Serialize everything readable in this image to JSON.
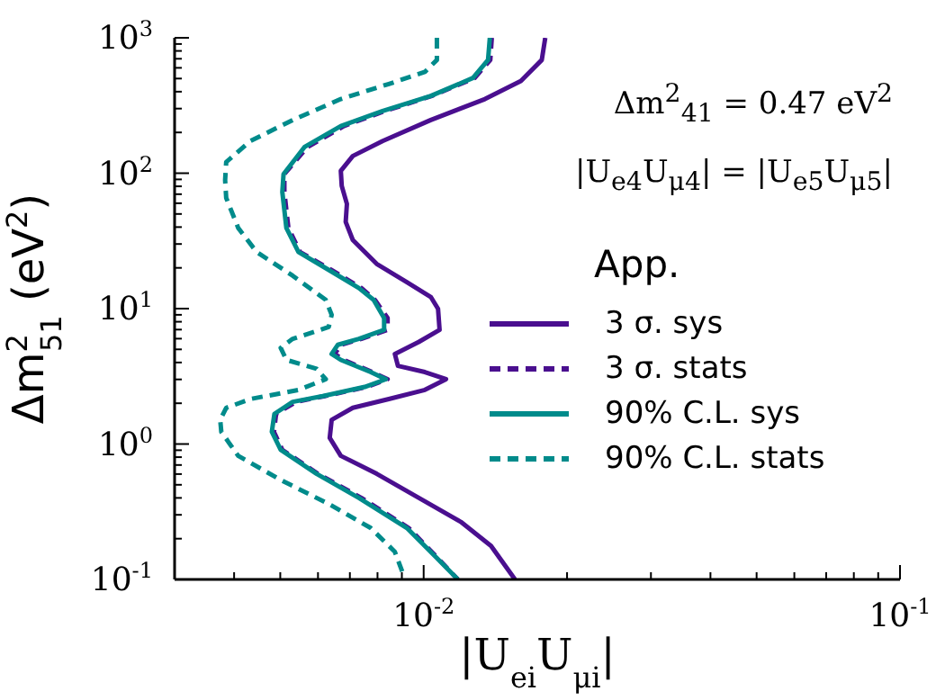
{
  "chart_data": {
    "type": "line",
    "xlabel": "|U$_{ei}$U$_{μi}$|",
    "ylabel": "Δm$^{2}$$_{51}$ (eV$^{2}$)",
    "legend_title": "App.",
    "annotations": [
      "Δm$^{2}$$_{41}$ = 0.47 eV$^{2}$",
      "|U$_{e4}$U$_{μ4}$| = |U$_{e5}$U$_{μ5}$|"
    ],
    "log": "xy",
    "legend": "right",
    "marker": "none",
    "xlim": [
      0.003,
      0.1
    ],
    "ylim": [
      0.1,
      1000
    ],
    "xticks": [
      {
        "value": 0.004,
        "label": null
      },
      {
        "value": 0.005,
        "label": null
      },
      {
        "value": 0.006,
        "label": null
      },
      {
        "value": 0.007,
        "label": null
      },
      {
        "value": 0.008,
        "label": null
      },
      {
        "value": 0.009,
        "label": null
      },
      {
        "value": 0.01,
        "label": "10$^{-2}$"
      },
      {
        "value": 0.02,
        "label": null
      },
      {
        "value": 0.03,
        "label": null
      },
      {
        "value": 0.04,
        "label": null
      },
      {
        "value": 0.05,
        "label": null
      },
      {
        "value": 0.06,
        "label": null
      },
      {
        "value": 0.07,
        "label": null
      },
      {
        "value": 0.08,
        "label": null
      },
      {
        "value": 0.09,
        "label": null
      },
      {
        "value": 0.1,
        "label": "10$^{-1}$"
      }
    ],
    "yticks": [
      {
        "value": 0.1,
        "label": "10$^{-1}$"
      },
      {
        "value": 0.2,
        "label": null
      },
      {
        "value": 0.3,
        "label": null
      },
      {
        "value": 0.4,
        "label": null
      },
      {
        "value": 0.5,
        "label": null
      },
      {
        "value": 0.6,
        "label": null
      },
      {
        "value": 0.7,
        "label": null
      },
      {
        "value": 0.8,
        "label": null
      },
      {
        "value": 0.9,
        "label": null
      },
      {
        "value": 1,
        "label": "10$^{0}$"
      },
      {
        "value": 2,
        "label": null
      },
      {
        "value": 3,
        "label": null
      },
      {
        "value": 4,
        "label": null
      },
      {
        "value": 5,
        "label": null
      },
      {
        "value": 6,
        "label": null
      },
      {
        "value": 7,
        "label": null
      },
      {
        "value": 8,
        "label": null
      },
      {
        "value": 9,
        "label": null
      },
      {
        "value": 10,
        "label": "10$^{1}$"
      },
      {
        "value": 20,
        "label": null
      },
      {
        "value": 30,
        "label": null
      },
      {
        "value": 40,
        "label": null
      },
      {
        "value": 50,
        "label": null
      },
      {
        "value": 60,
        "label": null
      },
      {
        "value": 70,
        "label": null
      },
      {
        "value": 80,
        "label": null
      },
      {
        "value": 90,
        "label": null
      },
      {
        "value": 100,
        "label": "10$^{2}$"
      },
      {
        "value": 200,
        "label": null
      },
      {
        "value": 300,
        "label": null
      },
      {
        "value": 400,
        "label": null
      },
      {
        "value": 500,
        "label": null
      },
      {
        "value": 600,
        "label": null
      },
      {
        "value": 700,
        "label": null
      },
      {
        "value": 800,
        "label": null
      },
      {
        "value": 900,
        "label": null
      },
      {
        "value": 1000,
        "label": "10$^{3}$"
      }
    ],
    "series": [
      {
        "name": "3 σ. sys",
        "color": "#4a0f8f",
        "line_style": "solid",
        "x": [
          0.018,
          0.0177,
          0.016,
          0.01345,
          0.01035,
          0.0082,
          0.0071,
          0.0067,
          0.00673,
          0.0069,
          0.00686,
          0.0071,
          0.00797,
          0.00922,
          0.01035,
          0.01072,
          0.0108,
          0.00977,
          0.0087,
          0.00883,
          0.01006,
          0.01114,
          0.01006,
          0.00845,
          0.0071,
          0.00641,
          0.00635,
          0.0067,
          0.00797,
          0.00977,
          0.01197,
          0.01385,
          0.01555
        ],
        "values": [
          1000,
          686,
          480,
          353,
          247,
          173,
          134,
          104,
          80.5,
          59.3,
          43.7,
          32.1,
          21.4,
          15.7,
          12.2,
          9.95,
          6.97,
          5.68,
          4.62,
          3.78,
          3.4,
          3.01,
          2.51,
          2.15,
          1.85,
          1.51,
          1.11,
          0.818,
          0.603,
          0.4,
          0.266,
          0.177,
          0.1
        ]
      },
      {
        "name": "3 σ. stats",
        "color": "#4a0f8f",
        "line_style": "dashed",
        "x": [
          0.0139,
          0.0138,
          0.0128,
          0.0104,
          0.0083,
          0.0068,
          0.0057,
          0.0051,
          0.0051,
          0.0052,
          0.0055,
          0.0064,
          0.0074,
          0.0079,
          0.0084,
          0.0084,
          0.0074,
          0.0067,
          0.0065,
          0.0068,
          0.0078,
          0.0084,
          0.0076,
          0.0062,
          0.0054,
          0.0049,
          0.00485,
          0.00505,
          0.006,
          0.0074,
          0.0093,
          0.0107,
          0.0118
        ],
        "values": [
          1000,
          686,
          505,
          372,
          288,
          223,
          156,
          98.6,
          72.6,
          39.4,
          26.2,
          19.3,
          14.2,
          11.6,
          8.53,
          6.97,
          5.98,
          5.4,
          4.62,
          4.18,
          3.4,
          3.01,
          2.64,
          2.26,
          2.05,
          1.67,
          1.23,
          0.906,
          0.603,
          0.4,
          0.24,
          0.144,
          0.1
        ]
      },
      {
        "name": "90% C.L. sys",
        "color": "#008b8b",
        "line_style": "solid",
        "x": [
          0.01377,
          0.01365,
          0.01269,
          0.01035,
          0.0082,
          0.0067,
          0.00562,
          0.00508,
          0.00505,
          0.00515,
          0.00546,
          0.00632,
          0.00731,
          0.00785,
          0.00826,
          0.00826,
          0.00731,
          0.0066,
          0.00641,
          0.0067,
          0.00774,
          0.00833,
          0.00752,
          0.00614,
          0.00531,
          0.00486,
          0.0048,
          0.00501,
          0.00596,
          0.00731,
          0.00922,
          0.01066,
          0.0118
        ],
        "values": [
          1000,
          686,
          505,
          372,
          288,
          223,
          156,
          98.6,
          72.6,
          39.4,
          26.2,
          19.3,
          14.2,
          11.6,
          8.53,
          6.97,
          5.98,
          5.4,
          4.62,
          4.18,
          3.4,
          3.01,
          2.64,
          2.26,
          2.05,
          1.67,
          1.23,
          0.906,
          0.603,
          0.4,
          0.24,
          0.144,
          0.1
        ]
      },
      {
        "name": "90% C.L. stats",
        "color": "#008b8b",
        "line_style": "dashed",
        "x": [
          0.01066,
          0.01066,
          0.01006,
          0.00845,
          0.0067,
          0.00531,
          0.00433,
          0.00385,
          0.00383,
          0.00385,
          0.00408,
          0.00446,
          0.00531,
          0.00623,
          0.00641,
          0.00632,
          0.00531,
          0.00501,
          0.00515,
          0.00596,
          0.00623,
          0.00546,
          0.00433,
          0.00385,
          0.00374,
          0.00376,
          0.00408,
          0.00501,
          0.00632,
          0.00774,
          0.0087,
          0.00909
        ],
        "values": [
          1000,
          686,
          560,
          456,
          353,
          247,
          173,
          121,
          89.1,
          65.7,
          39.4,
          26.2,
          17.5,
          11.6,
          8.99,
          7.32,
          5.98,
          5.13,
          4.18,
          3.59,
          3.01,
          2.51,
          2.15,
          1.85,
          1.51,
          1.23,
          0.818,
          0.543,
          0.361,
          0.24,
          0.16,
          0.106
        ]
      }
    ]
  }
}
